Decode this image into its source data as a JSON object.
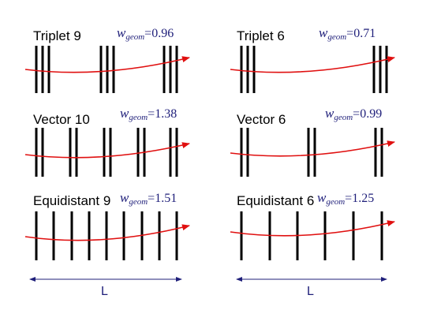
{
  "panels": [
    {
      "title": "Triplet 9",
      "w_symbol": "w",
      "w_subscript": "geom",
      "w_value": "0.96",
      "layer_count": 9,
      "arrangement": "triplet"
    },
    {
      "title": "Triplet 6",
      "w_symbol": "w",
      "w_subscript": "geom",
      "w_value": "0.71",
      "layer_count": 6,
      "arrangement": "triplet"
    },
    {
      "title": "Vector 10",
      "w_symbol": "w",
      "w_subscript": "geom",
      "w_value": "1.38",
      "layer_count": 10,
      "arrangement": "vector"
    },
    {
      "title": "Vector 6",
      "w_symbol": "w",
      "w_subscript": "geom",
      "w_value": "0.99",
      "layer_count": 6,
      "arrangement": "vector"
    },
    {
      "title": "Equidistant 9",
      "w_symbol": "w",
      "w_subscript": "geom",
      "w_value": "1.51",
      "layer_count": 9,
      "arrangement": "equidistant"
    },
    {
      "title": "Equidistant 6",
      "w_symbol": "w",
      "w_subscript": "geom",
      "w_value": "1.25",
      "layer_count": 6,
      "arrangement": "equidistant"
    }
  ],
  "length_labels": [
    "L",
    "L"
  ],
  "colors": {
    "layer": "#000000",
    "track": "#e01010",
    "label": "#1f1f7a",
    "dimension": "#1f1f7a"
  }
}
